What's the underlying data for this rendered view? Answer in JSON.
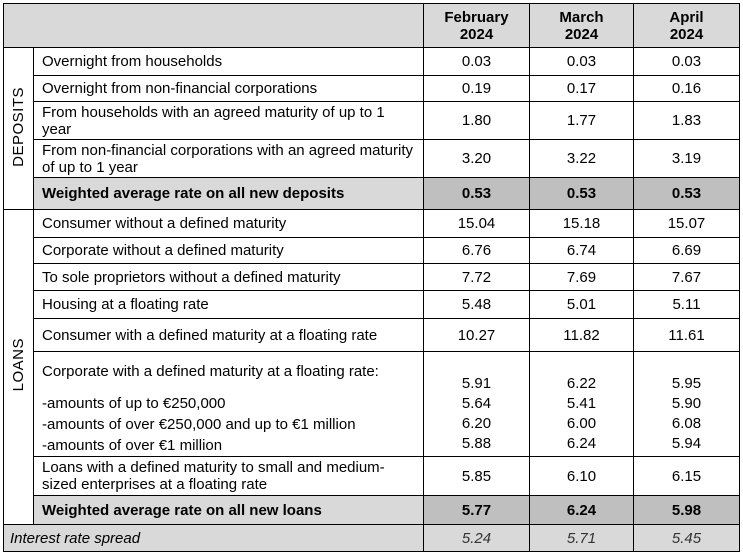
{
  "header": {
    "columns": [
      {
        "month": "February",
        "year": "2024"
      },
      {
        "month": "March",
        "year": "2024"
      },
      {
        "month": "April",
        "year": "2024"
      }
    ]
  },
  "sections": [
    {
      "label": "DEPOSITS",
      "rows": [
        {
          "label": "Overnight from households",
          "values": [
            "0.03",
            "0.03",
            "0.03"
          ]
        },
        {
          "label": "Overnight from non-financial corporations",
          "values": [
            "0.19",
            "0.17",
            "0.16"
          ]
        },
        {
          "label": "From households with an agreed maturity of up to 1 year",
          "values": [
            "1.80",
            "1.77",
            "1.83"
          ]
        },
        {
          "label": "From non-financial corporations with an agreed maturity of up to 1 year",
          "values": [
            "3.20",
            "3.22",
            "3.19"
          ]
        }
      ],
      "total": {
        "label": "Weighted average rate on all new deposits",
        "values": [
          "0.53",
          "0.53",
          "0.53"
        ]
      }
    },
    {
      "label": "LOANS",
      "rows": [
        {
          "label": "Consumer without a defined maturity",
          "values": [
            "15.04",
            "15.18",
            "15.07"
          ]
        },
        {
          "label": "Corporate without a defined maturity",
          "values": [
            "6.76",
            "6.74",
            "6.69"
          ]
        },
        {
          "label": "To sole proprietors without a defined maturity",
          "values": [
            "7.72",
            "7.69",
            "7.67"
          ]
        },
        {
          "label": "Housing at a floating rate",
          "values": [
            "5.48",
            "5.01",
            "5.11"
          ]
        },
        {
          "label": "Consumer with a defined maturity at a floating rate",
          "values": [
            "10.27",
            "11.82",
            "11.61"
          ]
        },
        {
          "label": "Corporate with a defined maturity at a floating rate:",
          "values": [
            "5.91",
            "6.22",
            "5.95"
          ],
          "subrows": [
            {
              "label": "-amounts of up to €250,000",
              "values": [
                "5.64",
                "5.41",
                "5.90"
              ]
            },
            {
              "label": "-amounts of over €250,000 and up to €1 million",
              "values": [
                "6.20",
                "6.00",
                "6.08"
              ]
            },
            {
              "label": "-amounts of over €1 million",
              "values": [
                "5.88",
                "6.24",
                "5.94"
              ]
            }
          ]
        },
        {
          "label": "Loans with a defined maturity to small and medium-sized enterprises at a floating rate",
          "values": [
            "5.85",
            "6.10",
            "6.15"
          ]
        }
      ],
      "total": {
        "label": "Weighted average rate on all new loans",
        "values": [
          "5.77",
          "6.24",
          "5.98"
        ]
      }
    }
  ],
  "spread": {
    "label": "Interest rate spread",
    "values": [
      "5.24",
      "5.71",
      "5.45"
    ]
  }
}
